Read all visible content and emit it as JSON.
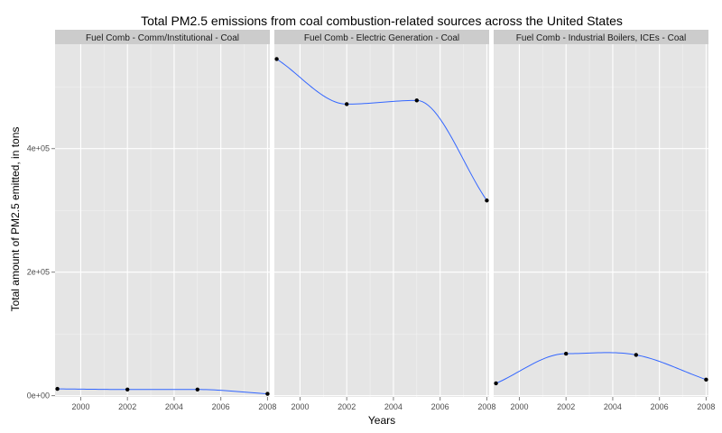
{
  "chart_data": {
    "type": "line",
    "title": "Total PM2.5 emissions from coal combustion-related sources across the United States",
    "xlabel": "Years",
    "ylabel": "Total amount of PM2.5 emitted, in tons",
    "x": [
      1999,
      2002,
      2005,
      2008
    ],
    "xlim": [
      1998.9,
      2008.1
    ],
    "ylim": [
      -2000,
      569000
    ],
    "x_ticks": [
      2000,
      2002,
      2004,
      2006,
      2008
    ],
    "y_ticks": [
      0,
      200000,
      400000
    ],
    "y_tick_labels": [
      "0e+00",
      "2e+05",
      "4e+05"
    ],
    "grid": true,
    "background": "#e5e5e5",
    "strip_background": "#cccccc",
    "line_color": "#3366ff",
    "point_color": "#000000",
    "panels": [
      {
        "label": "Fuel Comb - Comm/Institutional - Coal",
        "values": [
          11000,
          10000,
          10000,
          3000
        ]
      },
      {
        "label": "Fuel Comb - Electric Generation - Coal",
        "values": [
          545000,
          472000,
          478000,
          316000
        ]
      },
      {
        "label": "Fuel Comb - Industrial Boilers, ICEs - Coal",
        "values": [
          20000,
          68000,
          66000,
          26000
        ]
      }
    ]
  }
}
